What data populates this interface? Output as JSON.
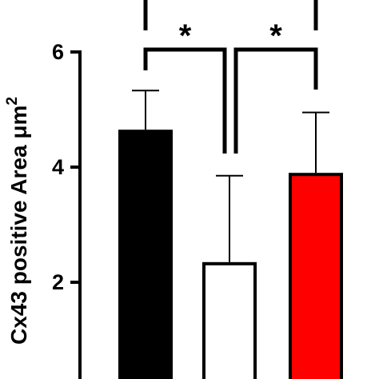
{
  "chart_data": {
    "type": "bar",
    "ylabel": "Cx43 positive Area μm",
    "ylabel_superscript": "2",
    "yticks": [
      "2",
      "4",
      "6"
    ],
    "ytick_values": [
      2,
      4,
      6
    ],
    "ylim": [
      0,
      6
    ],
    "series": [
      {
        "value": 4.65,
        "error": 0.68,
        "fill": "#000000"
      },
      {
        "value": 2.35,
        "error": 1.5,
        "fill": "#ffffff"
      },
      {
        "value": 3.9,
        "error": 1.05,
        "fill": "#ff0000"
      }
    ],
    "significance": [
      {
        "label": "*",
        "between": [
          0,
          1
        ]
      },
      {
        "label": "*",
        "between": [
          1,
          2
        ]
      }
    ]
  }
}
